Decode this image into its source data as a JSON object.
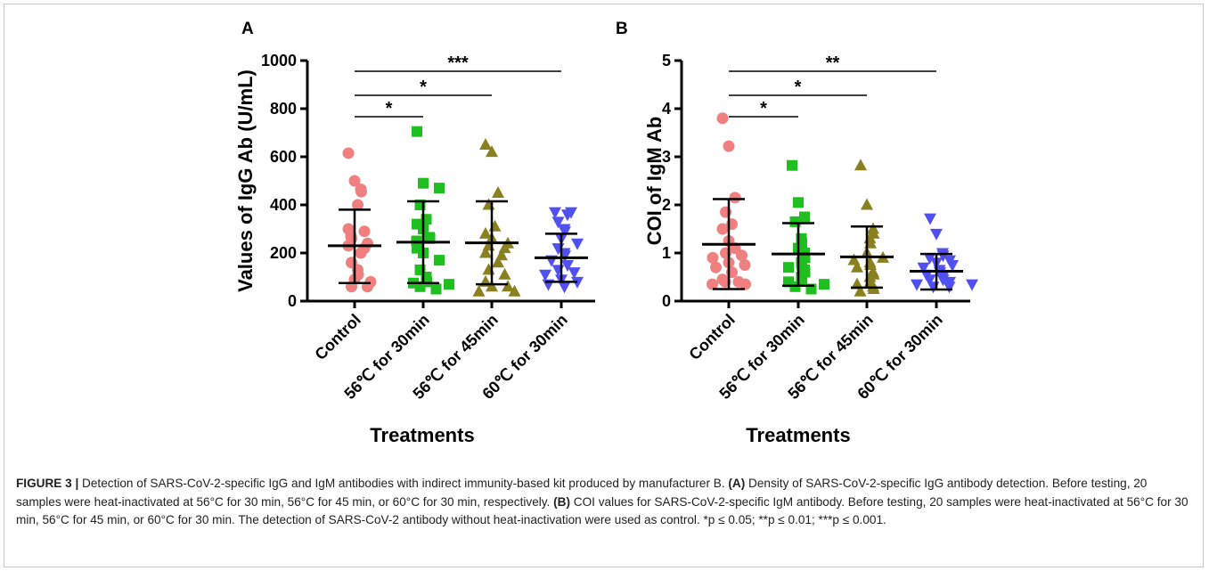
{
  "chart_data": [
    {
      "type": "scatter",
      "panel": "A",
      "ylabel": "Values of IgG Ab (U/mL)",
      "xlabel": "Treatments",
      "ylim": [
        0,
        1000
      ],
      "yticks": [
        "0",
        "200",
        "400",
        "600",
        "800",
        "1000"
      ],
      "categories": [
        "Control",
        "56℃ for 30min",
        "56℃ for 45min",
        "60℃ for 30min"
      ],
      "series": [
        {
          "color": "#f08080",
          "marker": "circle",
          "values": [
            615,
            500,
            465,
            455,
            400,
            300,
            290,
            270,
            260,
            240,
            230,
            220,
            200,
            160,
            130,
            110,
            90,
            80,
            60,
            60
          ],
          "mean": 230,
          "sd_low": 75,
          "sd_high": 380
        },
        {
          "color": "#1fbf1f",
          "marker": "square",
          "values": [
            705,
            490,
            470,
            400,
            340,
            320,
            300,
            265,
            260,
            250,
            220,
            200,
            170,
            130,
            100,
            80,
            75,
            70,
            60,
            50
          ],
          "mean": 245,
          "sd_low": 75,
          "sd_high": 415
        },
        {
          "color": "#8b8020",
          "marker": "triangle-up",
          "values": [
            650,
            620,
            450,
            400,
            310,
            280,
            260,
            240,
            230,
            220,
            200,
            190,
            160,
            130,
            110,
            80,
            60,
            60,
            40,
            40
          ],
          "mean": 242,
          "sd_low": 70,
          "sd_high": 415
        },
        {
          "color": "#5050f0",
          "marker": "triangle-down",
          "values": [
            370,
            370,
            360,
            330,
            300,
            290,
            260,
            240,
            220,
            200,
            190,
            170,
            150,
            130,
            120,
            110,
            90,
            80,
            70,
            60
          ],
          "mean": 180,
          "sd_low": 80,
          "sd_high": 280
        }
      ],
      "significance": [
        {
          "from": 0,
          "to": 1,
          "label": "*"
        },
        {
          "from": 0,
          "to": 2,
          "label": "*"
        },
        {
          "from": 0,
          "to": 3,
          "label": "***"
        }
      ]
    },
    {
      "type": "scatter",
      "panel": "B",
      "ylabel": "COI of IgM Ab",
      "xlabel": "Treatments",
      "ylim": [
        0,
        5
      ],
      "yticks": [
        "0",
        "1",
        "2",
        "3",
        "4",
        "5"
      ],
      "categories": [
        "Control",
        "56℃ for 30min",
        "56℃ for 45min",
        "60℃ for 30min"
      ],
      "series": [
        {
          "color": "#f08080",
          "marker": "circle",
          "values": [
            3.8,
            3.22,
            2.15,
            1.85,
            1.6,
            1.5,
            1.25,
            1.1,
            1.0,
            0.95,
            0.9,
            0.8,
            0.75,
            0.7,
            0.6,
            0.45,
            0.4,
            0.4,
            0.35,
            0.35
          ],
          "mean": 1.18,
          "sd_low": 0.25,
          "sd_high": 2.12
        },
        {
          "color": "#1fbf1f",
          "marker": "square",
          "values": [
            2.82,
            2.05,
            1.75,
            1.65,
            1.3,
            1.2,
            1.1,
            1.0,
            0.9,
            0.8,
            0.75,
            0.7,
            0.65,
            0.6,
            0.5,
            0.45,
            0.4,
            0.35,
            0.3,
            0.25
          ],
          "mean": 0.98,
          "sd_low": 0.32,
          "sd_high": 1.62
        },
        {
          "color": "#8b8020",
          "marker": "triangle-up",
          "values": [
            2.82,
            2.0,
            1.5,
            1.4,
            1.3,
            1.2,
            1.0,
            0.9,
            0.85,
            0.8,
            0.75,
            0.7,
            0.6,
            0.55,
            0.5,
            0.4,
            0.35,
            0.3,
            0.25,
            0.2
          ],
          "mean": 0.92,
          "sd_low": 0.28,
          "sd_high": 1.55
        },
        {
          "color": "#5050f0",
          "marker": "triangle-down",
          "values": [
            1.72,
            1.4,
            1.0,
            0.95,
            0.9,
            0.85,
            0.8,
            0.75,
            0.7,
            0.65,
            0.6,
            0.55,
            0.5,
            0.45,
            0.45,
            0.4,
            0.35,
            0.35,
            0.3,
            0.3
          ],
          "mean": 0.62,
          "sd_low": 0.24,
          "sd_high": 0.98
        }
      ],
      "significance": [
        {
          "from": 0,
          "to": 1,
          "label": "*"
        },
        {
          "from": 0,
          "to": 2,
          "label": "*"
        },
        {
          "from": 0,
          "to": 3,
          "label": "**"
        }
      ]
    }
  ],
  "caption": {
    "title": "FIGURE 3 |",
    "intro": " Detection of SARS-CoV-2-specific IgG and IgM antibodies with indirect immunity-based kit produced by manufacturer B. ",
    "label_a": "(A)",
    "text_a": " Density of SARS-CoV-2-specific IgG antibody detection. Before testing, 20 samples were heat-inactivated at 56°C for 30 min, 56°C for 45 min, or 60°C for 30 min, respectively. ",
    "label_b": "(B)",
    "text_b": " COI values for SARS-CoV-2-specific IgM antibody. Before testing, 20 samples were heat-inactivated at 56°C for 30 min, 56°C for 45 min, or 60°C for 30 min. The detection of SARS-CoV-2 antibody without heat-inactivation were used as control. *p ≤ 0.05; **p ≤ 0.01; ***p ≤ 0.001."
  }
}
